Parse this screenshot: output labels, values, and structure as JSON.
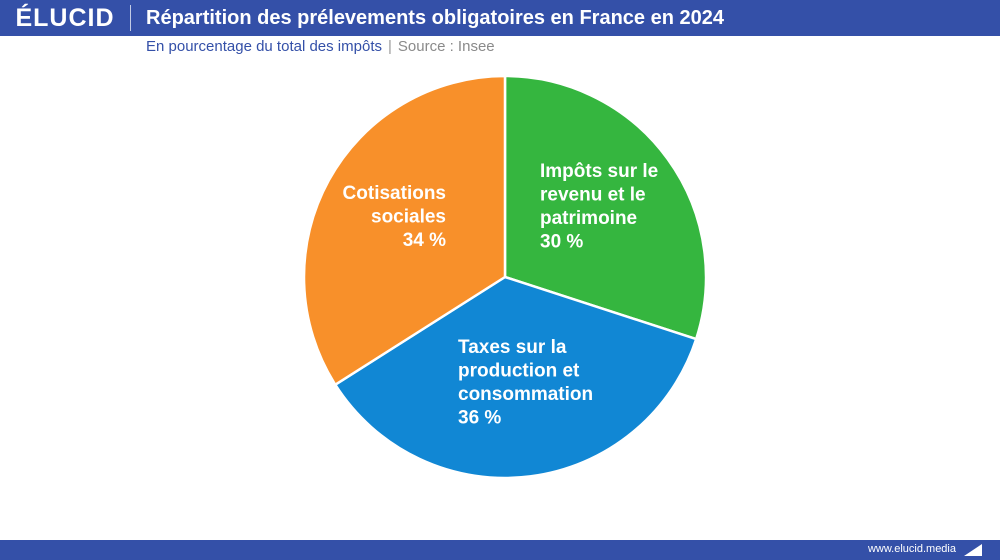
{
  "header": {
    "logo": "ÉLUCID",
    "title": "Répartition des prélevements obligatoires en France en 2024"
  },
  "subtitle": {
    "text": "En pourcentage du total des impôts",
    "separator": "|",
    "source": "Source : Insee"
  },
  "footer": {
    "url": "www.elucid.media"
  },
  "chart_data": {
    "type": "pie",
    "title": "Répartition des prélevements obligatoires en France en 2024",
    "subtitle": "En pourcentage du total des impôts",
    "unit": "%",
    "slices": [
      {
        "label_lines": [
          "Impôts sur le",
          "revenu et le",
          "patrimoine"
        ],
        "value": 30,
        "value_label": "30 %",
        "color": "#35b63f"
      },
      {
        "label_lines": [
          "Taxes sur la",
          "production et",
          "consommation"
        ],
        "value": 36,
        "value_label": "36 %",
        "color": "#1187d4"
      },
      {
        "label_lines": [
          "Cotisations",
          "sociales"
        ],
        "value": 34,
        "value_label": "34 %",
        "color": "#f8902a"
      }
    ]
  }
}
